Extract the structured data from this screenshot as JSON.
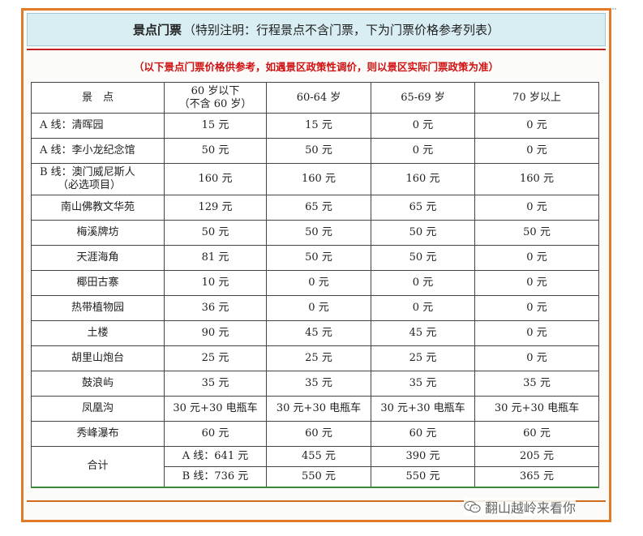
{
  "title": {
    "main": "景点门票",
    "sub": "（特别注明：行程景点不含门票，下为门票价格参考列表）"
  },
  "note": "（以下景点门票价格供参考，如遇景区政策性调价，则以景区实际门票政策为准）",
  "table": {
    "headers": [
      {
        "line1": "景　点",
        "line2": ""
      },
      {
        "line1": "60 岁以下",
        "line2": "（不含 60 岁）"
      },
      {
        "line1": "60-64 岁",
        "line2": ""
      },
      {
        "line1": "65-69 岁",
        "line2": ""
      },
      {
        "line1": "70 岁以上",
        "line2": ""
      }
    ],
    "rows": [
      {
        "name": "A 线：清晖园",
        "line2": "",
        "v1": "15 元",
        "v2": "15 元",
        "v3": "0 元",
        "v4": "0 元"
      },
      {
        "name": "A 线：李小龙纪念馆",
        "line2": "",
        "v1": "50 元",
        "v2": "50 元",
        "v3": "0 元",
        "v4": "0 元"
      },
      {
        "name": "B 线：澳门威尼斯人",
        "line2": "（必选项目）",
        "v1": "160 元",
        "v2": "160 元",
        "v3": "160 元",
        "v4": "160 元"
      },
      {
        "name": "南山佛教文华苑",
        "line2": "",
        "v1": "129 元",
        "v2": "65 元",
        "v3": "65 元",
        "v4": "0 元"
      },
      {
        "name": "梅溪牌坊",
        "line2": "",
        "v1": "50 元",
        "v2": "50 元",
        "v3": "50 元",
        "v4": "50 元"
      },
      {
        "name": "天涯海角",
        "line2": "",
        "v1": "81 元",
        "v2": "50 元",
        "v3": "50 元",
        "v4": "0 元"
      },
      {
        "name": "椰田古寨",
        "line2": "",
        "v1": "10 元",
        "v2": "0 元",
        "v3": "0 元",
        "v4": "0 元"
      },
      {
        "name": "热带植物园",
        "line2": "",
        "v1": "36 元",
        "v2": "0 元",
        "v3": "0 元",
        "v4": "0 元"
      },
      {
        "name": "土楼",
        "line2": "",
        "v1": "90 元",
        "v2": "45 元",
        "v3": "45 元",
        "v4": "0 元"
      },
      {
        "name": "胡里山炮台",
        "line2": "",
        "v1": "25 元",
        "v2": "25 元",
        "v3": "25 元",
        "v4": "0 元"
      },
      {
        "name": "鼓浪屿",
        "line2": "",
        "v1": "35 元",
        "v2": "35 元",
        "v3": "35 元",
        "v4": "35 元"
      },
      {
        "name": "凤凰沟",
        "line2": "",
        "v1": "30 元+30 电瓶车",
        "v2": "30 元+30 电瓶车",
        "v3": "30 元+30 电瓶车",
        "v4": "30 元+30 电瓶车"
      },
      {
        "name": "秀峰瀑布",
        "line2": "",
        "v1": "60 元",
        "v2": "60 元",
        "v3": "60 元",
        "v4": "60 元"
      }
    ],
    "total": {
      "label": "合计",
      "a": {
        "v1": "A 线：641 元",
        "v2": "455 元",
        "v3": "390 元",
        "v4": "205 元"
      },
      "b": {
        "v1": "B 线：736 元",
        "v2": "550 元",
        "v3": "550 元",
        "v4": "365 元"
      }
    }
  },
  "watermark": {
    "text": "翻山越岭来看你",
    "icon": "wechat-icon"
  },
  "colors": {
    "frame": "#e07b28",
    "title_bg": "#d8eef3",
    "note_text": "#d01010",
    "table_bottom": "#3a8a3a"
  }
}
